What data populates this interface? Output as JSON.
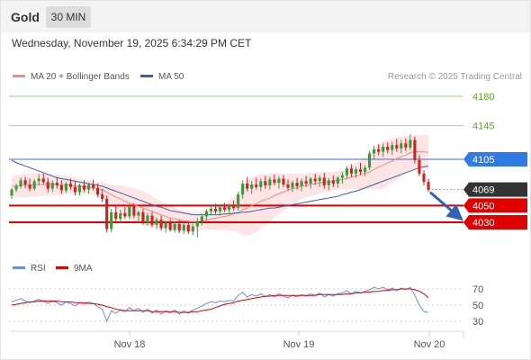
{
  "header": {
    "title": "Gold",
    "timeframe": "30 MIN"
  },
  "datetime": "Wednesday, November 19, 2025 6:34:29 PM CET",
  "legend": {
    "bb_label": "MA 20 + Bollinger Bands",
    "ma50_label": "MA 50",
    "bb_color": "#f08a8a",
    "ma50_color": "#3b5ea8"
  },
  "research": "Research © 2025 Trading Central",
  "rsi_legend": {
    "rsi_label": "RSI",
    "ma9_label": "9MA",
    "rsi_color": "#6a8fdc",
    "ma9_color": "#e00000"
  },
  "chart_data": [
    {
      "type": "candlestick",
      "ylim": [
        3995,
        4195
      ],
      "x_labels": [
        "Nov 18",
        "Nov 19",
        "Nov 20"
      ],
      "levels": [
        {
          "value": 4180,
          "label": "4180",
          "style": "target",
          "color": "#5aa829"
        },
        {
          "value": 4145,
          "label": "4145",
          "style": "target",
          "color": "#5aa829"
        },
        {
          "value": 4105,
          "label": "4105",
          "style": "pivot",
          "color": "#2f7ae5"
        },
        {
          "value": 4069,
          "label": "4069",
          "style": "last",
          "color": "#333333"
        },
        {
          "value": 4050,
          "label": "4050",
          "style": "support",
          "color": "#e00000"
        },
        {
          "value": 4030,
          "label": "4030",
          "style": "support",
          "color": "#e00000"
        }
      ],
      "candles": [
        [
          4062,
          4071,
          4058,
          4069
        ],
        [
          4069,
          4076,
          4066,
          4073
        ],
        [
          4073,
          4083,
          4070,
          4080
        ],
        [
          4080,
          4084,
          4071,
          4075
        ],
        [
          4075,
          4082,
          4067,
          4070
        ],
        [
          4070,
          4081,
          4068,
          4079
        ],
        [
          4079,
          4087,
          4074,
          4082
        ],
        [
          4082,
          4088,
          4075,
          4078
        ],
        [
          4078,
          4083,
          4066,
          4070
        ],
        [
          4070,
          4080,
          4066,
          4077
        ],
        [
          4077,
          4084,
          4070,
          4074
        ],
        [
          4074,
          4080,
          4064,
          4068
        ],
        [
          4068,
          4078,
          4065,
          4076
        ],
        [
          4076,
          4082,
          4069,
          4072
        ],
        [
          4072,
          4079,
          4062,
          4066
        ],
        [
          4066,
          4076,
          4062,
          4074
        ],
        [
          4074,
          4080,
          4066,
          4069
        ],
        [
          4069,
          4077,
          4064,
          4075
        ],
        [
          4075,
          4081,
          4068,
          4071
        ],
        [
          4071,
          4076,
          4060,
          4063
        ],
        [
          4063,
          4070,
          4054,
          4058
        ],
        [
          4058,
          4062,
          4018,
          4022
        ],
        [
          4022,
          4046,
          4018,
          4042
        ],
        [
          4042,
          4050,
          4030,
          4034
        ],
        [
          4034,
          4045,
          4030,
          4041
        ],
        [
          4041,
          4048,
          4034,
          4037
        ],
        [
          4037,
          4052,
          4034,
          4049
        ],
        [
          4049,
          4053,
          4035,
          4038
        ],
        [
          4038,
          4044,
          4030,
          4042
        ],
        [
          4042,
          4046,
          4027,
          4030
        ],
        [
          4030,
          4041,
          4026,
          4038
        ],
        [
          4038,
          4042,
          4024,
          4027
        ],
        [
          4027,
          4036,
          4022,
          4033
        ],
        [
          4033,
          4038,
          4020,
          4023
        ],
        [
          4023,
          4032,
          4018,
          4029
        ],
        [
          4029,
          4034,
          4019,
          4021
        ],
        [
          4021,
          4031,
          4018,
          4028
        ],
        [
          4028,
          4033,
          4017,
          4020
        ],
        [
          4020,
          4030,
          4016,
          4027
        ],
        [
          4027,
          4032,
          4016,
          4019
        ],
        [
          4019,
          4028,
          4015,
          4025
        ],
        [
          4025,
          4035,
          4012,
          4031
        ],
        [
          4031,
          4040,
          4026,
          4037
        ],
        [
          4037,
          4046,
          4032,
          4043
        ],
        [
          4043,
          4050,
          4038,
          4046
        ],
        [
          4046,
          4052,
          4040,
          4043
        ],
        [
          4043,
          4050,
          4038,
          4048
        ],
        [
          4048,
          4053,
          4042,
          4045
        ],
        [
          4045,
          4052,
          4039,
          4050
        ],
        [
          4050,
          4056,
          4044,
          4047
        ],
        [
          4047,
          4066,
          4044,
          4063
        ],
        [
          4063,
          4080,
          4058,
          4076
        ],
        [
          4076,
          4084,
          4067,
          4070
        ],
        [
          4070,
          4079,
          4064,
          4075
        ],
        [
          4075,
          4083,
          4069,
          4072
        ],
        [
          4072,
          4082,
          4067,
          4079
        ],
        [
          4079,
          4085,
          4070,
          4074
        ],
        [
          4074,
          4084,
          4069,
          4081
        ],
        [
          4081,
          4087,
          4074,
          4077
        ],
        [
          4077,
          4085,
          4070,
          4082
        ],
        [
          4082,
          4086,
          4072,
          4075
        ],
        [
          4075,
          4081,
          4068,
          4071
        ],
        [
          4071,
          4080,
          4066,
          4077
        ],
        [
          4077,
          4083,
          4069,
          4073
        ],
        [
          4073,
          4082,
          4067,
          4079
        ],
        [
          4079,
          4085,
          4072,
          4076
        ],
        [
          4076,
          4084,
          4070,
          4082
        ],
        [
          4082,
          4088,
          4075,
          4079
        ],
        [
          4079,
          4086,
          4072,
          4083
        ],
        [
          4083,
          4089,
          4070,
          4074
        ],
        [
          4074,
          4083,
          4068,
          4080
        ],
        [
          4080,
          4086,
          4072,
          4076
        ],
        [
          4076,
          4085,
          4071,
          4083
        ],
        [
          4083,
          4090,
          4076,
          4086
        ],
        [
          4086,
          4097,
          4082,
          4094
        ],
        [
          4094,
          4099,
          4084,
          4088
        ],
        [
          4088,
          4096,
          4083,
          4093
        ],
        [
          4093,
          4101,
          4086,
          4090
        ],
        [
          4090,
          4098,
          4085,
          4095
        ],
        [
          4095,
          4115,
          4092,
          4112
        ],
        [
          4112,
          4121,
          4105,
          4117
        ],
        [
          4117,
          4123,
          4110,
          4114
        ],
        [
          4114,
          4124,
          4108,
          4120
        ],
        [
          4120,
          4125,
          4112,
          4116
        ],
        [
          4116,
          4126,
          4110,
          4122
        ],
        [
          4122,
          4129,
          4114,
          4118
        ],
        [
          4118,
          4128,
          4112,
          4124
        ],
        [
          4124,
          4130,
          4115,
          4119
        ],
        [
          4119,
          4135,
          4116,
          4128
        ],
        [
          4128,
          4132,
          4100,
          4104
        ],
        [
          4104,
          4110,
          4085,
          4088
        ],
        [
          4088,
          4092,
          4074,
          4078
        ],
        [
          4078,
          4082,
          4066,
          4069
        ]
      ],
      "ma20": [
        4073,
        4073,
        4074,
        4074,
        4074,
        4075,
        4075,
        4075,
        4075,
        4075,
        4075,
        4074,
        4074,
        4074,
        4073,
        4073,
        4072,
        4072,
        4071,
        4070,
        4069,
        4066,
        4063,
        4060,
        4058,
        4055,
        4053,
        4051,
        4049,
        4047,
        4045,
        4043,
        4041,
        4039,
        4037,
        4035,
        4034,
        4033,
        4032,
        4031,
        4031,
        4031,
        4032,
        4033,
        4034,
        4035,
        4036,
        4037,
        4038,
        4040,
        4042,
        4045,
        4047,
        4050,
        4052,
        4055,
        4057,
        4059,
        4062,
        4064,
        4066,
        4068,
        4070,
        4071,
        4073,
        4074,
        4075,
        4076,
        4077,
        4078,
        4078,
        4079,
        4080,
        4081,
        4082,
        4084,
        4085,
        4087,
        4088,
        4090,
        4093,
        4096,
        4098,
        4101,
        4103,
        4106,
        4108,
        4110,
        4113,
        4114,
        4114,
        4114,
        4113
      ],
      "bb_upper": [
        4085,
        4086,
        4087,
        4088,
        4088,
        4089,
        4089,
        4089,
        4088,
        4088,
        4087,
        4086,
        4085,
        4084,
        4083,
        4082,
        4081,
        4080,
        4079,
        4078,
        4078,
        4076,
        4075,
        4074,
        4074,
        4073,
        4072,
        4071,
        4069,
        4067,
        4064,
        4061,
        4058,
        4055,
        4052,
        4050,
        4048,
        4046,
        4044,
        4043,
        4042,
        4042,
        4043,
        4045,
        4047,
        4049,
        4051,
        4053,
        4056,
        4060,
        4066,
        4074,
        4080,
        4084,
        4086,
        4087,
        4087,
        4088,
        4088,
        4088,
        4088,
        4088,
        4088,
        4088,
        4088,
        4088,
        4089,
        4089,
        4090,
        4090,
        4090,
        4090,
        4091,
        4092,
        4095,
        4098,
        4101,
        4104,
        4107,
        4110,
        4117,
        4123,
        4126,
        4128,
        4130,
        4131,
        4132,
        4132,
        4133,
        4134,
        4134,
        4134,
        4134
      ],
      "bb_lower": [
        4061,
        4060,
        4060,
        4060,
        4060,
        4061,
        4061,
        4061,
        4062,
        4062,
        4063,
        4062,
        4063,
        4064,
        4063,
        4064,
        4063,
        4064,
        4063,
        4062,
        4060,
        4056,
        4051,
        4046,
        4042,
        4037,
        4034,
        4031,
        4029,
        4027,
        4026,
        4025,
        4024,
        4023,
        4022,
        4020,
        4020,
        4020,
        4020,
        4019,
        4020,
        4020,
        4021,
        4021,
        4021,
        4021,
        4021,
        4021,
        4020,
        4020,
        4018,
        4016,
        4014,
        4016,
        4018,
        4023,
        4027,
        4030,
        4036,
        4040,
        4044,
        4048,
        4052,
        4054,
        4058,
        4060,
        4061,
        4063,
        4064,
        4066,
        4066,
        4068,
        4069,
        4070,
        4069,
        4070,
        4069,
        4070,
        4069,
        4070,
        4069,
        4069,
        4070,
        4074,
        4076,
        4081,
        4084,
        4088,
        4093,
        4094,
        4094,
        4094,
        4092
      ],
      "ma50": [
        4104,
        4101,
        4099,
        4097,
        4095,
        4093,
        4091,
        4089,
        4087,
        4085,
        4083,
        4082,
        4081,
        4080,
        4079,
        4078,
        4077,
        4076,
        4075,
        4074,
        4073,
        4071,
        4069,
        4067,
        4065,
        4063,
        4061,
        4059,
        4057,
        4055,
        4053,
        4051,
        4049,
        4048,
        4046,
        4044,
        4043,
        4042,
        4041,
        4040,
        4039,
        4039,
        4039,
        4039,
        4039,
        4039,
        4039,
        4040,
        4040,
        4041,
        4041,
        4042,
        4042,
        4043,
        4044,
        4045,
        4046,
        4047,
        4047,
        4048,
        4049,
        4050,
        4051,
        4052,
        4053,
        4054,
        4055,
        4056,
        4057,
        4058,
        4059,
        4060,
        4061,
        4063,
        4064,
        4066,
        4067,
        4069,
        4071,
        4073,
        4075,
        4077,
        4079,
        4081,
        4083,
        4085,
        4087,
        4089,
        4091,
        4093,
        4095,
        4096,
        4097
      ],
      "forecast_arrow": {
        "from": 4069,
        "to": 4037
      }
    },
    {
      "type": "line",
      "name": "RSI",
      "ylim": [
        22,
        78
      ],
      "y_ticks": [
        70,
        50,
        30
      ],
      "rsi": [
        54,
        56,
        58,
        55,
        53,
        55,
        57,
        55,
        52,
        55,
        53,
        50,
        54,
        52,
        49,
        53,
        51,
        54,
        52,
        48,
        45,
        30,
        43,
        40,
        44,
        42,
        47,
        43,
        46,
        41,
        45,
        40,
        44,
        39,
        43,
        40,
        44,
        39,
        43,
        40,
        44,
        46,
        49,
        52,
        54,
        53,
        55,
        54,
        56,
        55,
        62,
        66,
        60,
        63,
        61,
        64,
        60,
        63,
        60,
        64,
        61,
        59,
        62,
        60,
        63,
        61,
        64,
        62,
        65,
        60,
        63,
        61,
        64,
        65,
        68,
        64,
        67,
        65,
        67,
        69,
        72,
        70,
        72,
        69,
        71,
        68,
        71,
        69,
        72,
        62,
        50,
        42,
        41
      ],
      "ma9": [
        50,
        51,
        52,
        53,
        54,
        54,
        55,
        55,
        55,
        55,
        55,
        54,
        54,
        54,
        53,
        53,
        53,
        52,
        52,
        51,
        50,
        48,
        47,
        45,
        44,
        43,
        43,
        43,
        43,
        43,
        43,
        42,
        42,
        42,
        42,
        42,
        42,
        41,
        41,
        41,
        42,
        42,
        43,
        44,
        45,
        47,
        49,
        51,
        52,
        53,
        55,
        56,
        57,
        58,
        59,
        60,
        61,
        61,
        62,
        62,
        62,
        62,
        62,
        62,
        62,
        62,
        62,
        62,
        63,
        63,
        63,
        63,
        63,
        63,
        64,
        64,
        65,
        65,
        66,
        66,
        67,
        67,
        68,
        68,
        69,
        69,
        70,
        70,
        70,
        69,
        67,
        64,
        59
      ]
    }
  ]
}
